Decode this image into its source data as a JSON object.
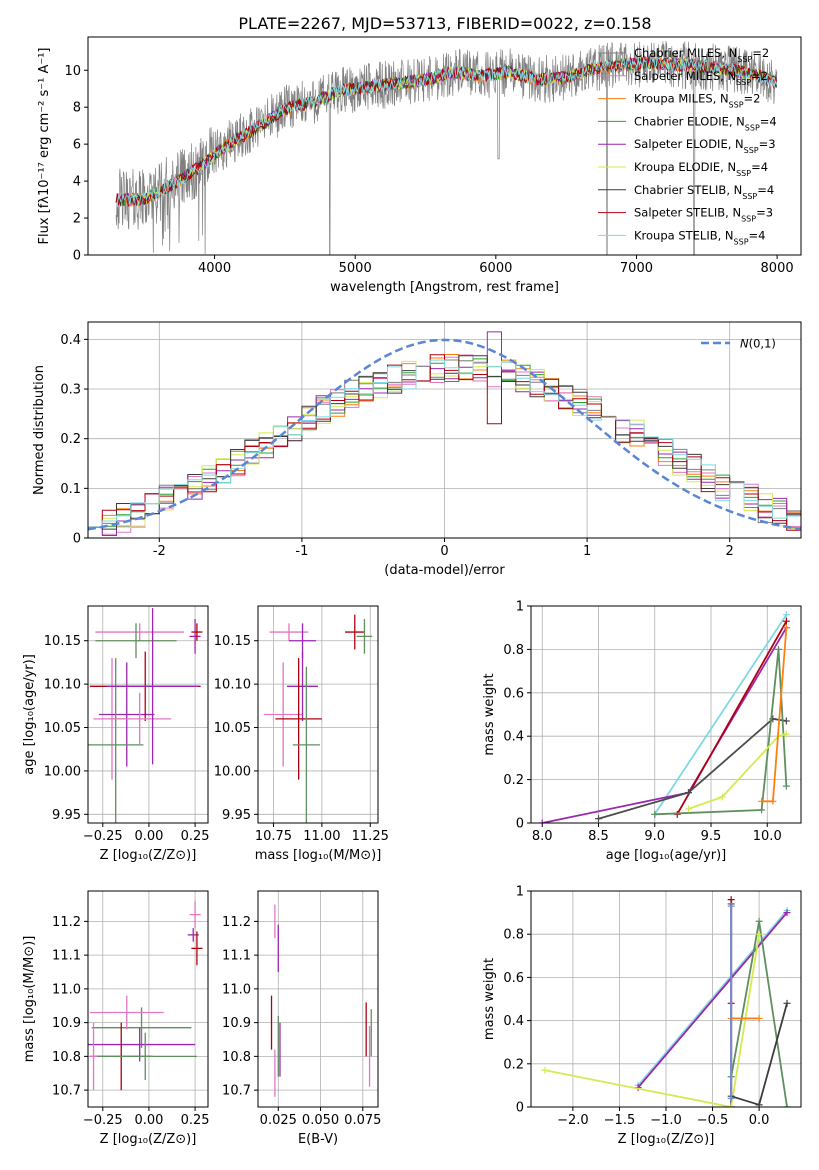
{
  "figure": {
    "title": "PLATE=2267, MJD=53713, FIBERID=0022, z=0.158"
  },
  "colors": {
    "data_gray": "#808080",
    "normal_curve": "#5b86d6",
    "models": [
      "#7f7f7f",
      "#e377c2",
      "#ff7f0e",
      "#2ca02c",
      "#9b27b0",
      "#d4ea50",
      "#3c3c3c",
      "#b00010",
      "#7fd9e0",
      "#6a8fe8",
      "#5e8f5e",
      "#4c4c4c"
    ]
  },
  "chart_data": [
    {
      "id": "spectrum",
      "type": "line",
      "xlabel": "wavelength [Angstrom, rest frame]",
      "ylabel": "Flux [fλ10⁻¹⁷ erg cm⁻² s⁻¹ A⁻¹]",
      "xlim": [
        3100,
        8170
      ],
      "ylim": [
        0,
        11.8
      ],
      "xticks": [
        4000,
        5000,
        6000,
        7000,
        8000
      ],
      "yticks": [
        0,
        2,
        4,
        6,
        8,
        10
      ],
      "grid": false,
      "legend": "top-right",
      "legend_entries": [
        "Chabrier MILES, N_SSP=2",
        "Salpeter MILES, N_SSP=2",
        "Kroupa MILES, N_SSP=2",
        "Chabrier ELODIE, N_SSP=4",
        "Salpeter ELODIE, N_SSP=3",
        "Kroupa ELODIE, N_SSP=4",
        "Chabrier STELIB, N_SSP=4",
        "Salpeter STELIB, N_SSP=3",
        "Kroupa STELIB, N_SSP=4"
      ],
      "continuum": {
        "x": [
          3300,
          3500,
          3700,
          3900,
          4100,
          4300,
          4500,
          4700,
          4900,
          5100,
          5300,
          5500,
          5700,
          5900,
          6100,
          6300,
          6500,
          6700,
          6900,
          7100,
          7300,
          7500,
          7700,
          7900,
          8000
        ],
        "y": [
          3.0,
          3.0,
          3.8,
          4.8,
          6.0,
          6.9,
          7.9,
          8.3,
          8.9,
          9.1,
          9.3,
          9.5,
          9.9,
          9.7,
          9.9,
          9.5,
          9.6,
          10.1,
          10.3,
          10.4,
          10.3,
          10.2,
          10.0,
          9.6,
          9.3
        ]
      }
    },
    {
      "id": "residuals",
      "type": "line",
      "xlabel": "(data-model)/error",
      "ylabel": "Normed distribution",
      "xlim": [
        -2.5,
        2.5
      ],
      "ylim": [
        0,
        0.435
      ],
      "xticks": [
        -2,
        -1,
        0,
        1,
        2
      ],
      "yticks": [
        0.0,
        0.1,
        0.2,
        0.3,
        0.4
      ],
      "grid": true,
      "legend": "upper-right",
      "legend_entries": [
        "N(0,1)"
      ],
      "hist_edges": [
        -2.5,
        -2.4,
        -2.3,
        -2.2,
        -2.1,
        -2.0,
        -1.9,
        -1.8,
        -1.7,
        -1.6,
        -1.5,
        -1.4,
        -1.3,
        -1.2,
        -1.1,
        -1.0,
        -0.9,
        -0.8,
        -0.7,
        -0.6,
        -0.5,
        -0.4,
        -0.3,
        -0.2,
        -0.1,
        0.0,
        0.1,
        0.2,
        0.3,
        0.4,
        0.5,
        0.6,
        0.7,
        0.8,
        0.9,
        1.0,
        1.1,
        1.2,
        1.3,
        1.4,
        1.5,
        1.6,
        1.7,
        1.8,
        1.9,
        2.0,
        2.1,
        2.2,
        2.3,
        2.4,
        2.5
      ],
      "hist_base": [
        0.03,
        0.03,
        0.04,
        0.05,
        0.06,
        0.08,
        0.09,
        0.1,
        0.12,
        0.14,
        0.15,
        0.17,
        0.19,
        0.21,
        0.22,
        0.24,
        0.26,
        0.27,
        0.29,
        0.3,
        0.31,
        0.32,
        0.33,
        0.33,
        0.34,
        0.34,
        0.34,
        0.34,
        0.33,
        0.33,
        0.32,
        0.31,
        0.3,
        0.29,
        0.27,
        0.26,
        0.24,
        0.22,
        0.21,
        0.19,
        0.17,
        0.15,
        0.14,
        0.12,
        0.1,
        0.09,
        0.08,
        0.06,
        0.05,
        0.04
      ]
    },
    {
      "id": "age-vs-Z",
      "type": "scatter",
      "xlabel": "Z [log₁₀(Z/Z⊙)]",
      "ylabel": "age  [log₁₀(age/yr)]",
      "xlim": [
        -0.33,
        0.32
      ],
      "ylim": [
        9.94,
        10.19
      ],
      "xticks": [
        -0.25,
        0.0,
        0.25
      ],
      "xticklabels": [
        "−0.25",
        "0.00",
        "0.25"
      ],
      "yticks": [
        9.95,
        10.0,
        10.05,
        10.1,
        10.15
      ],
      "yticklabels": [
        "9.95",
        "10.00",
        "10.05",
        "10.10",
        "10.15"
      ],
      "grid": true,
      "points": [
        {
          "x": -0.05,
          "y": 10.16,
          "xerr": 0.24,
          "yerr": 0.01
        },
        {
          "x": 0.25,
          "y": 10.155,
          "xerr": 0.03,
          "yerr": 0.02
        },
        {
          "x": 0.26,
          "y": 10.16,
          "xerr": 0.03,
          "yerr": 0.01
        },
        {
          "x": -0.07,
          "y": 10.15,
          "xerr": 0.22,
          "yerr": 0.02
        },
        {
          "x": -0.2,
          "y": 10.06,
          "xerr": 0.1,
          "yerr": 0.07
        },
        {
          "x": -0.12,
          "y": 10.065,
          "xerr": 0.15,
          "yerr": 0.06
        },
        {
          "x": -0.02,
          "y": 10.0975,
          "xerr": 0.3,
          "yerr": 0.04
        },
        {
          "x": -0.18,
          "y": 10.03,
          "xerr": 0.15,
          "yerr": 0.1
        },
        {
          "x": -0.05,
          "y": 10.06,
          "xerr": 0.17,
          "yerr": 0.03
        },
        {
          "x": 0.02,
          "y": 10.0975,
          "xerr": 0.25,
          "yerr": 0.09
        }
      ]
    },
    {
      "id": "age-vs-mass",
      "type": "scatter",
      "xlabel": "mass [log₁₀(M/M⊙)]",
      "ylabel": "",
      "xlim": [
        10.67,
        11.29
      ],
      "ylim": [
        9.94,
        10.19
      ],
      "xticks": [
        10.75,
        11.0,
        11.25
      ],
      "xticklabels": [
        "10.75",
        "11.00",
        "11.25"
      ],
      "yticks": [
        9.95,
        10.0,
        10.05,
        10.1,
        10.15
      ],
      "yticklabels": [
        "9.95",
        "10.00",
        "10.05",
        "10.10",
        "10.15"
      ],
      "grid": true,
      "points": [
        {
          "x": 10.83,
          "y": 10.16,
          "xerr": 0.1,
          "yerr": 0.01
        },
        {
          "x": 10.9,
          "y": 10.15,
          "xerr": 0.07,
          "yerr": 0.02
        },
        {
          "x": 11.17,
          "y": 10.16,
          "xerr": 0.05,
          "yerr": 0.02
        },
        {
          "x": 11.22,
          "y": 10.155,
          "xerr": 0.04,
          "yerr": 0.02
        },
        {
          "x": 10.8,
          "y": 10.065,
          "xerr": 0.1,
          "yerr": 0.06
        },
        {
          "x": 10.9,
          "y": 10.0975,
          "xerr": 0.08,
          "yerr": 0.04
        },
        {
          "x": 10.88,
          "y": 10.06,
          "xerr": 0.12,
          "yerr": 0.07
        },
        {
          "x": 10.92,
          "y": 10.03,
          "xerr": 0.07,
          "yerr": 0.09
        }
      ]
    },
    {
      "id": "massweight-vs-age",
      "type": "line",
      "xlabel": "age  [log₁₀(age/yr)]",
      "ylabel": "mass weight",
      "xlim": [
        7.9,
        10.3
      ],
      "ylim": [
        0,
        1.0
      ],
      "xticks": [
        8.0,
        8.5,
        9.0,
        9.5,
        10.0
      ],
      "xticklabels": [
        "8.0",
        "8.5",
        "9.0",
        "9.5",
        "10.0"
      ],
      "yticks": [
        0.0,
        0.2,
        0.4,
        0.6,
        0.8,
        1.0
      ],
      "grid": true,
      "series": [
        {
          "x": [
            9.0,
            10.17
          ],
          "y": [
            0.04,
            0.96
          ]
        },
        {
          "x": [
            8.0,
            9.3,
            10.17
          ],
          "y": [
            0.0,
            0.14,
            0.9
          ]
        },
        {
          "x": [
            9.2,
            10.17
          ],
          "y": [
            0.04,
            0.93
          ]
        },
        {
          "x": [
            8.5,
            9.3,
            10.05,
            10.17
          ],
          "y": [
            0.02,
            0.14,
            0.48,
            0.47
          ]
        },
        {
          "x": [
            9.0,
            9.95,
            10.1,
            10.17
          ],
          "y": [
            0.04,
            0.06,
            0.8,
            0.17
          ]
        },
        {
          "x": [
            9.3,
            9.6,
            10.1,
            10.17
          ],
          "y": [
            0.065,
            0.12,
            0.4,
            0.41
          ]
        },
        {
          "x": [
            9.95,
            10.05,
            10.17
          ],
          "y": [
            0.1,
            0.1,
            0.9
          ]
        }
      ]
    },
    {
      "id": "mass-vs-Z",
      "type": "scatter",
      "xlabel": "Z [log₁₀(Z/Z⊙)]",
      "ylabel": "mass [log₁₀(M/M⊙)]",
      "xlim": [
        -0.33,
        0.32
      ],
      "ylim": [
        10.65,
        11.29
      ],
      "xticks": [
        -0.25,
        0.0,
        0.25
      ],
      "xticklabels": [
        "−0.25",
        "0.00",
        "0.25"
      ],
      "yticks": [
        10.7,
        10.8,
        10.9,
        11.0,
        11.1,
        11.2
      ],
      "yticklabels": [
        "10.7",
        "10.8",
        "10.9",
        "11.0",
        "11.1",
        "11.2"
      ],
      "grid": true,
      "points": [
        {
          "x": 0.25,
          "y": 11.22,
          "xerr": 0.03,
          "yerr": 0.04
        },
        {
          "x": 0.24,
          "y": 11.16,
          "xerr": 0.03,
          "yerr": 0.02
        },
        {
          "x": 0.26,
          "y": 11.12,
          "xerr": 0.03,
          "yerr": 0.05
        },
        {
          "x": -0.04,
          "y": 10.885,
          "xerr": 0.27,
          "yerr": 0.06
        },
        {
          "x": -0.12,
          "y": 10.93,
          "xerr": 0.2,
          "yerr": 0.05
        },
        {
          "x": -0.05,
          "y": 10.835,
          "xerr": 0.3,
          "yerr": 0.05
        },
        {
          "x": -0.15,
          "y": 10.8,
          "xerr": 0.17,
          "yerr": 0.1
        },
        {
          "x": -0.02,
          "y": 10.8,
          "xerr": 0.28,
          "yerr": 0.07
        },
        {
          "x": -0.3,
          "y": 10.8,
          "xerr": 0.02,
          "yerr": 0.1
        }
      ]
    },
    {
      "id": "mass-vs-ebv",
      "type": "scatter",
      "xlabel": "E(B-V)",
      "ylabel": "",
      "xlim": [
        0.013,
        0.084
      ],
      "ylim": [
        10.65,
        11.29
      ],
      "xticks": [
        0.025,
        0.05,
        0.075
      ],
      "xticklabels": [
        "0.025",
        "0.050",
        "0.075"
      ],
      "yticks": [
        10.7,
        10.8,
        10.9,
        11.0,
        11.1,
        11.2
      ],
      "yticklabels": [
        "10.7",
        "10.8",
        "10.9",
        "11.0",
        "11.1",
        "11.2"
      ],
      "grid": true,
      "points": [
        {
          "x": 0.023,
          "y": 11.2,
          "xerr": 0,
          "yerr": 0.05
        },
        {
          "x": 0.025,
          "y": 11.12,
          "xerr": 0,
          "yerr": 0.07
        },
        {
          "x": 0.021,
          "y": 10.9,
          "xerr": 0,
          "yerr": 0.08
        },
        {
          "x": 0.025,
          "y": 10.83,
          "xerr": 0,
          "yerr": 0.09
        },
        {
          "x": 0.023,
          "y": 10.75,
          "xerr": 0,
          "yerr": 0.07
        },
        {
          "x": 0.026,
          "y": 10.82,
          "xerr": 0,
          "yerr": 0.08
        },
        {
          "x": 0.077,
          "y": 10.88,
          "xerr": 0,
          "yerr": 0.08
        },
        {
          "x": 0.08,
          "y": 10.87,
          "xerr": 0,
          "yerr": 0.07
        },
        {
          "x": 0.079,
          "y": 10.8,
          "xerr": 0,
          "yerr": 0.09
        }
      ]
    },
    {
      "id": "massweight-vs-Z",
      "type": "line",
      "xlabel": "Z [log₁₀(Z/Z⊙)]",
      "ylabel": "mass weight",
      "xlim": [
        -2.45,
        0.45
      ],
      "ylim": [
        0,
        1.0
      ],
      "xticks": [
        -2.0,
        -1.5,
        -1.0,
        -0.5,
        0.0
      ],
      "xticklabels": [
        "−2.0",
        "−1.5",
        "−1.0",
        "−0.5",
        "0.0"
      ],
      "yticks": [
        0.0,
        0.2,
        0.4,
        0.6,
        0.8,
        1.0
      ],
      "grid": true,
      "series": [
        {
          "x": [
            -1.3,
            0.3
          ],
          "y": [
            0.1,
            0.91
          ]
        },
        {
          "x": [
            -1.3,
            0.3
          ],
          "y": [
            0.09,
            0.9
          ]
        },
        {
          "x": [
            -0.3,
            -0.3,
            -0.3
          ],
          "y": [
            0.96,
            0.48,
            0.0
          ]
        },
        {
          "x": [
            -0.3,
            -0.3
          ],
          "y": [
            0.94,
            0.0
          ]
        },
        {
          "x": [
            -0.3,
            0.0,
            0.3
          ],
          "y": [
            0.14,
            0.86,
            0.0
          ]
        },
        {
          "x": [
            -2.3,
            -0.3,
            0.0
          ],
          "y": [
            0.17,
            0.0,
            0.8
          ]
        },
        {
          "x": [
            -0.3,
            0.0
          ],
          "y": [
            0.41,
            0.41
          ]
        },
        {
          "x": [
            -0.3,
            0.0,
            0.3
          ],
          "y": [
            0.05,
            0.01,
            0.48
          ]
        },
        {
          "x": [
            -0.3,
            -0.3
          ],
          "y": [
            0.93,
            0.04
          ]
        }
      ]
    }
  ]
}
